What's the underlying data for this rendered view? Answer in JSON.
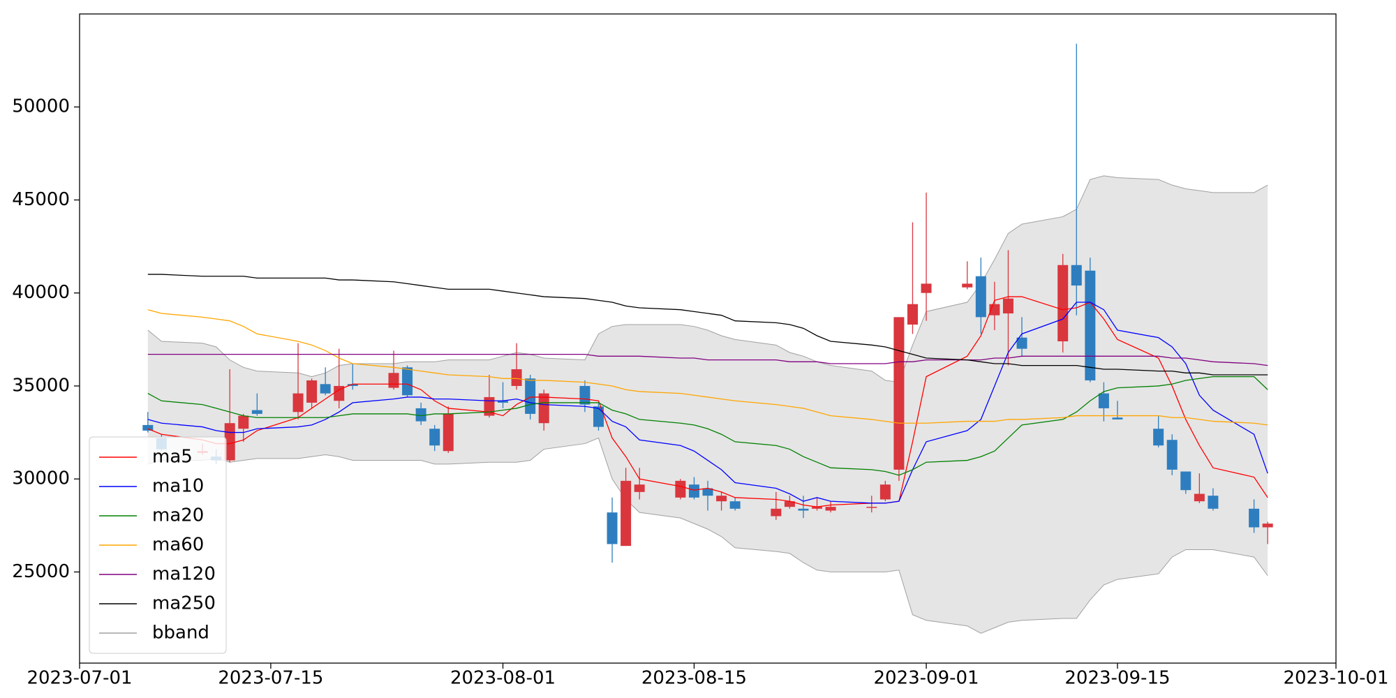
{
  "chart_data": {
    "type": "candlestick",
    "x": [
      "2023-07-06",
      "2023-07-07",
      "2023-07-10",
      "2023-07-11",
      "2023-07-12",
      "2023-07-13",
      "2023-07-14",
      "2023-07-17",
      "2023-07-18",
      "2023-07-19",
      "2023-07-20",
      "2023-07-21",
      "2023-07-24",
      "2023-07-25",
      "2023-07-26",
      "2023-07-27",
      "2023-07-28",
      "2023-07-31",
      "2023-08-01",
      "2023-08-02",
      "2023-08-03",
      "2023-08-04",
      "2023-08-07",
      "2023-08-08",
      "2023-08-09",
      "2023-08-10",
      "2023-08-11",
      "2023-08-14",
      "2023-08-15",
      "2023-08-16",
      "2023-08-17",
      "2023-08-18",
      "2023-08-21",
      "2023-08-22",
      "2023-08-23",
      "2023-08-24",
      "2023-08-25",
      "2023-08-28",
      "2023-08-29",
      "2023-08-30",
      "2023-08-31",
      "2023-09-01",
      "2023-09-04",
      "2023-09-05",
      "2023-09-06",
      "2023-09-07",
      "2023-09-08",
      "2023-09-11",
      "2023-09-12",
      "2023-09-13",
      "2023-09-14",
      "2023-09-15",
      "2023-09-18",
      "2023-09-19",
      "2023-09-20",
      "2023-09-21",
      "2023-09-22",
      "2023-09-25",
      "2023-09-26"
    ],
    "open": [
      32900,
      32200,
      31400,
      31200,
      31000,
      32700,
      33700,
      33600,
      34100,
      35100,
      34200,
      35100,
      34900,
      36000,
      33800,
      32700,
      31500,
      33400,
      34200,
      35000,
      35400,
      33000,
      35000,
      33900,
      28200,
      26400,
      29300,
      29000,
      29700,
      29500,
      28800,
      28800,
      28000,
      28500,
      28400,
      28400,
      28300,
      28500,
      28900,
      30500,
      38300,
      40000,
      40300,
      40900,
      38800,
      38900,
      37600,
      37400,
      41500,
      41200,
      34600,
      33300,
      32700,
      32100,
      30400,
      28800,
      29100,
      28400,
      27400
    ],
    "high": [
      33600,
      32400,
      31900,
      31600,
      35900,
      33500,
      34600,
      37300,
      35400,
      36000,
      37000,
      36200,
      36900,
      36100,
      34100,
      32900,
      33900,
      35600,
      35200,
      37300,
      35600,
      34800,
      35300,
      34100,
      29000,
      30600,
      30600,
      30000,
      30100,
      29900,
      29300,
      29000,
      29300,
      29100,
      29100,
      29000,
      28800,
      29100,
      29900,
      38700,
      43800,
      45400,
      41700,
      41900,
      40600,
      42300,
      38700,
      42100,
      53400,
      41900,
      35200,
      34200,
      33400,
      32400,
      30400,
      30300,
      29500,
      28900,
      27700
    ],
    "low": [
      32500,
      31500,
      31300,
      30800,
      30900,
      32000,
      33400,
      33200,
      33800,
      34500,
      33800,
      34800,
      34800,
      34400,
      32900,
      31500,
      31400,
      33300,
      33800,
      34800,
      33200,
      32600,
      33600,
      32600,
      25500,
      26400,
      28900,
      28900,
      28900,
      28300,
      28300,
      28300,
      27800,
      28400,
      27900,
      28300,
      28200,
      28200,
      28800,
      29900,
      37800,
      38500,
      40200,
      37800,
      38000,
      36100,
      36600,
      36800,
      38800,
      35200,
      33100,
      33200,
      31700,
      30200,
      29200,
      28700,
      28300,
      27100,
      26500
    ],
    "close": [
      32600,
      31600,
      31500,
      31000,
      33000,
      33400,
      33500,
      34600,
      35300,
      34600,
      35000,
      35000,
      35700,
      34500,
      33100,
      31800,
      33500,
      34400,
      34100,
      35900,
      33500,
      34600,
      34000,
      32800,
      26500,
      29900,
      29700,
      29900,
      29000,
      29100,
      29100,
      28400,
      28400,
      28800,
      28300,
      28500,
      28500,
      28500,
      29700,
      38700,
      39400,
      40500,
      40500,
      38700,
      39400,
      39700,
      37000,
      41500,
      40400,
      35300,
      33800,
      33200,
      31800,
      30500,
      29400,
      29200,
      28400,
      27400,
      27600
    ],
    "up_color": "#d9363e",
    "down_color": "#2e7ebf",
    "series": [
      {
        "name": "ma5",
        "color": "#ff0000",
        "values": [
          32700,
          32400,
          32100,
          31900,
          31900,
          32100,
          32600,
          33300,
          33800,
          34300,
          34800,
          35100,
          35100,
          35100,
          34800,
          34200,
          33800,
          33600,
          33400,
          34000,
          34400,
          34400,
          34300,
          34200,
          32200,
          31200,
          30000,
          29600,
          29400,
          29500,
          29300,
          29000,
          28900,
          28800,
          28600,
          28500,
          28600,
          28700,
          28700,
          28800,
          32000,
          35500,
          36600,
          37700,
          39600,
          39800,
          39800,
          39100,
          39200,
          39500,
          38600,
          37500,
          36500,
          35000,
          33200,
          31800,
          30600,
          30100,
          29000
        ]
      },
      {
        "name": "ma10",
        "color": "#0000ff",
        "values": [
          33200,
          33000,
          32800,
          32600,
          32500,
          32500,
          32700,
          32800,
          32900,
          33200,
          33600,
          34100,
          34300,
          34400,
          34400,
          34300,
          34300,
          34200,
          34200,
          34300,
          34100,
          34000,
          33900,
          33800,
          33100,
          32800,
          32100,
          31800,
          31500,
          31000,
          30500,
          29800,
          29500,
          29200,
          28800,
          29000,
          28800,
          28700,
          28700,
          28800,
          30500,
          32000,
          32600,
          33200,
          35000,
          36800,
          37800,
          38600,
          39500,
          39500,
          39100,
          38000,
          37600,
          37100,
          36200,
          34500,
          33700,
          32400,
          30300
        ]
      },
      {
        "name": "ma20",
        "color": "#008000",
        "values": [
          34600,
          34200,
          34000,
          33800,
          33600,
          33400,
          33300,
          33300,
          33300,
          33300,
          33400,
          33500,
          33500,
          33500,
          33400,
          33500,
          33500,
          33600,
          33700,
          33800,
          34000,
          34100,
          34100,
          34100,
          33700,
          33500,
          33200,
          33000,
          32900,
          32700,
          32400,
          32000,
          31800,
          31600,
          31200,
          30900,
          30600,
          30500,
          30400,
          30200,
          30500,
          30900,
          31000,
          31200,
          31500,
          32200,
          32900,
          33200,
          33600,
          34200,
          34700,
          34900,
          35000,
          35100,
          35300,
          35400,
          35500,
          35500,
          34800
        ]
      },
      {
        "name": "ma60",
        "color": "#ffa500",
        "values": [
          39100,
          38900,
          38700,
          38600,
          38500,
          38200,
          37800,
          37400,
          37200,
          36900,
          36500,
          36200,
          36000,
          35900,
          35800,
          35700,
          35600,
          35500,
          35400,
          35400,
          35300,
          35300,
          35200,
          35100,
          35000,
          34800,
          34700,
          34600,
          34500,
          34400,
          34300,
          34200,
          34000,
          33900,
          33800,
          33600,
          33400,
          33200,
          33100,
          33000,
          33000,
          33000,
          33100,
          33100,
          33100,
          33200,
          33200,
          33300,
          33400,
          33400,
          33400,
          33400,
          33400,
          33300,
          33300,
          33200,
          33100,
          33000,
          32900
        ]
      },
      {
        "name": "ma120",
        "color": "#800080",
        "values": [
          36700,
          36700,
          36700,
          36700,
          36700,
          36700,
          36700,
          36700,
          36700,
          36700,
          36700,
          36700,
          36700,
          36700,
          36700,
          36700,
          36700,
          36700,
          36700,
          36700,
          36700,
          36700,
          36700,
          36600,
          36600,
          36600,
          36600,
          36500,
          36500,
          36400,
          36400,
          36400,
          36400,
          36300,
          36300,
          36300,
          36200,
          36200,
          36200,
          36300,
          36300,
          36400,
          36400,
          36400,
          36500,
          36500,
          36600,
          36600,
          36600,
          36600,
          36600,
          36600,
          36600,
          36500,
          36500,
          36400,
          36300,
          36200,
          36100
        ]
      },
      {
        "name": "ma250",
        "color": "#000000",
        "values": [
          41000,
          41000,
          40900,
          40900,
          40900,
          40900,
          40800,
          40800,
          40800,
          40800,
          40700,
          40700,
          40600,
          40500,
          40400,
          40300,
          40200,
          40200,
          40100,
          40000,
          39900,
          39800,
          39700,
          39600,
          39500,
          39300,
          39200,
          39100,
          39000,
          38900,
          38800,
          38500,
          38400,
          38300,
          38100,
          37700,
          37400,
          37200,
          37100,
          36900,
          36700,
          36500,
          36400,
          36300,
          36200,
          36200,
          36100,
          36100,
          36100,
          36000,
          35900,
          35900,
          35800,
          35800,
          35700,
          35700,
          35600,
          35600,
          35600
        ]
      }
    ],
    "band": {
      "name": "bband",
      "color": "#a0a0a0",
      "fill": "#e5e5e5",
      "upper": [
        38000,
        37400,
        37300,
        37100,
        36400,
        36000,
        35800,
        35700,
        35500,
        35700,
        36100,
        36200,
        36200,
        36300,
        36300,
        36300,
        36400,
        36400,
        36600,
        36800,
        36700,
        36500,
        36400,
        37800,
        38200,
        38300,
        38300,
        38300,
        38200,
        38000,
        37700,
        37500,
        37200,
        36800,
        36600,
        36300,
        36100,
        35800,
        35300,
        35200,
        37200,
        39000,
        39500,
        40500,
        41800,
        43200,
        43700,
        44100,
        44500,
        46100,
        46300,
        46200,
        46100,
        45800,
        45600,
        45500,
        45400,
        45400,
        45800
      ],
      "lower": [
        30800,
        31000,
        31000,
        31100,
        30900,
        31000,
        31100,
        31100,
        31200,
        31300,
        31200,
        31000,
        31000,
        31000,
        31000,
        30800,
        30800,
        30900,
        30900,
        30900,
        31000,
        31600,
        31900,
        32200,
        30000,
        28900,
        28200,
        27900,
        27600,
        27300,
        26900,
        26300,
        26100,
        26000,
        25500,
        25100,
        25000,
        25000,
        25000,
        25100,
        22700,
        22400,
        22100,
        21700,
        22000,
        22300,
        22400,
        22500,
        22500,
        23500,
        24300,
        24600,
        24900,
        25800,
        26200,
        26200,
        26200,
        25800,
        24800
      ]
    },
    "xlim": [
      "2023-07-01",
      "2023-10-01"
    ],
    "xticks": [
      "2023-07-01",
      "2023-07-15",
      "2023-08-01",
      "2023-08-15",
      "2023-09-01",
      "2023-09-15",
      "2023-10-01"
    ],
    "ylim": [
      20100,
      55000
    ],
    "yticks": [
      25000,
      30000,
      35000,
      40000,
      45000,
      50000
    ],
    "legend": "lower left"
  }
}
